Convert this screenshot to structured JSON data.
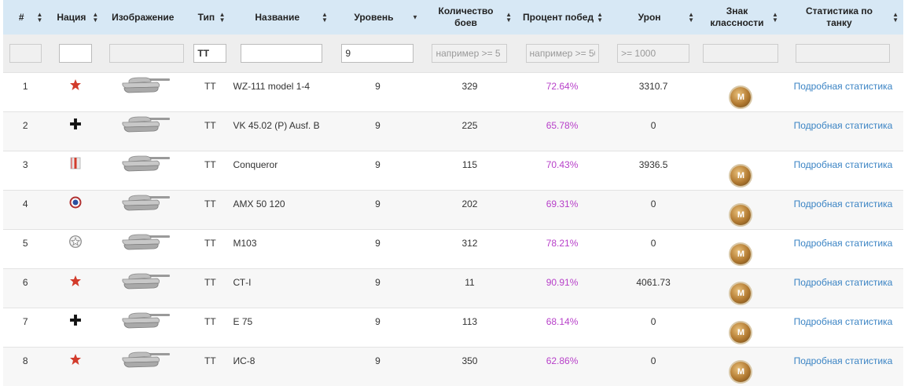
{
  "headers": {
    "num": "#",
    "nation": "Нация",
    "image": "Изображение",
    "type": "Тип",
    "name": "Название",
    "level": "Уровень",
    "battles_line1": "Количество",
    "battles_line2": "боев",
    "winrate": "Процент побед",
    "damage": "Урон",
    "mastery_line1": "Знак",
    "mastery_line2": "классности",
    "stats_line1": "Статистика по",
    "stats_line2": "танку"
  },
  "filters": {
    "type_value": "ТТ",
    "level_value": "9",
    "battles_placeholder": "например >= 5",
    "winrate_placeholder": "например >= 50",
    "damage_placeholder": ">= 1000"
  },
  "rows": [
    {
      "num": "1",
      "nation": "china-star-icon",
      "type": "ТТ",
      "name": "WZ-111 model 1-4",
      "level": "9",
      "battles": "329",
      "winrate": "72.64%",
      "damage": "3310.7",
      "medal": "M",
      "stats": "Подробная статистика"
    },
    {
      "num": "2",
      "nation": "germany-cross-icon",
      "type": "ТТ",
      "name": "VK 45.02 (P) Ausf. B",
      "level": "9",
      "battles": "225",
      "winrate": "65.78%",
      "damage": "0",
      "medal": "",
      "stats": "Подробная статистика"
    },
    {
      "num": "3",
      "nation": "uk-flag-icon",
      "type": "ТТ",
      "name": "Conqueror",
      "level": "9",
      "battles": "115",
      "winrate": "70.43%",
      "damage": "3936.5",
      "medal": "M",
      "stats": "Подробная статистика"
    },
    {
      "num": "4",
      "nation": "france-roundel-icon",
      "type": "ТТ",
      "name": "AMX 50 120",
      "level": "9",
      "battles": "202",
      "winrate": "69.31%",
      "damage": "0",
      "medal": "M",
      "stats": "Подробная статистика"
    },
    {
      "num": "5",
      "nation": "usa-star-icon",
      "type": "ТТ",
      "name": "M103",
      "level": "9",
      "battles": "312",
      "winrate": "78.21%",
      "damage": "0",
      "medal": "M",
      "stats": "Подробная статистика"
    },
    {
      "num": "6",
      "nation": "ussr-star-icon",
      "type": "ТТ",
      "name": "СТ-I",
      "level": "9",
      "battles": "11",
      "winrate": "90.91%",
      "damage": "4061.73",
      "medal": "M",
      "stats": "Подробная статистика"
    },
    {
      "num": "7",
      "nation": "germany-cross-icon",
      "type": "ТТ",
      "name": "E 75",
      "level": "9",
      "battles": "113",
      "winrate": "68.14%",
      "damage": "0",
      "medal": "M",
      "stats": "Подробная статистика"
    },
    {
      "num": "8",
      "nation": "ussr-star-icon",
      "type": "ТТ",
      "name": "ИС-8",
      "level": "9",
      "battles": "350",
      "winrate": "62.86%",
      "damage": "0",
      "medal": "M",
      "stats": "Подробная статистика"
    }
  ]
}
